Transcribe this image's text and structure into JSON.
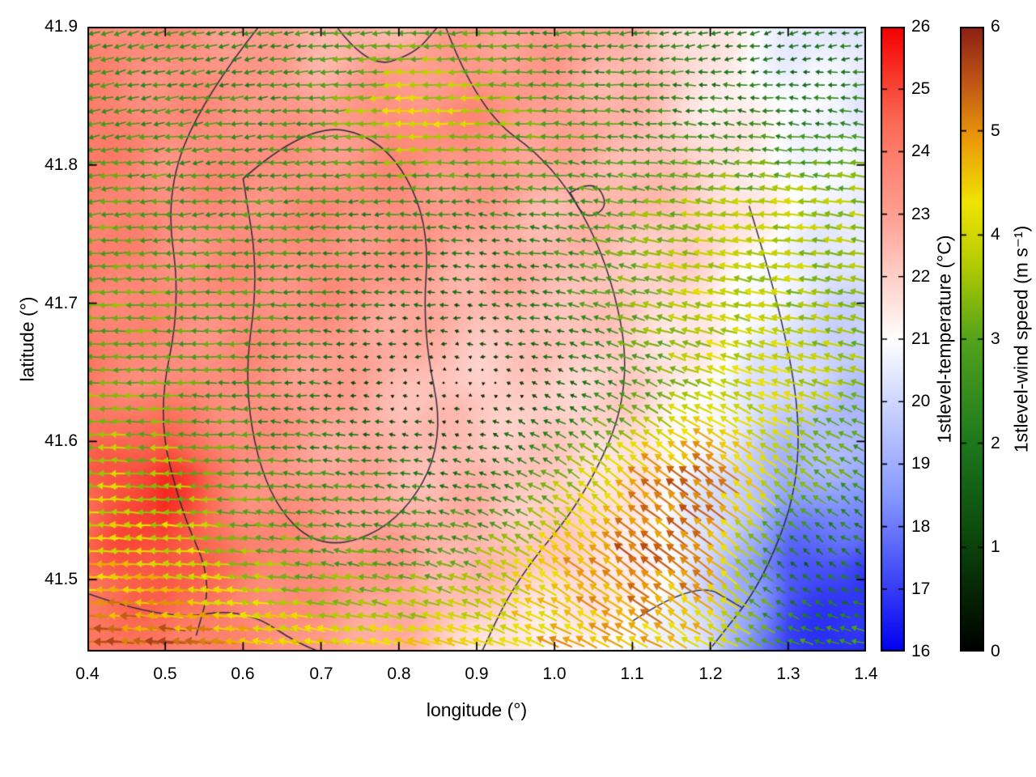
{
  "figure": {
    "background": "#ffffff"
  },
  "chart_data": {
    "type": "heatmap",
    "subtype": "temperature field with wind vector quiver overlay and contour lines",
    "title": "",
    "xlabel": "longitude (°)",
    "ylabel": "latitude (°)",
    "x_range": [
      0.4,
      1.4
    ],
    "y_range": [
      41.448,
      41.9
    ],
    "x_ticks": [
      "0.4",
      "0.5",
      "0.6",
      "0.7",
      "0.8",
      "0.9",
      "1.0",
      "1.1",
      "1.2",
      "1.3",
      "1.4"
    ],
    "y_ticks": [
      "41.9",
      "41.8",
      "41.7",
      "41.6",
      "41.5"
    ],
    "grid_on": false,
    "legend": "none",
    "temperature": {
      "label": "1stlevel-temperature (°C)",
      "range": [
        16,
        26
      ],
      "ticks_top_to_bottom": [
        "26",
        "25",
        "24",
        "23",
        "22",
        "21",
        "20",
        "19",
        "18",
        "17",
        "16"
      ],
      "colormap": [
        [
          0.0,
          "#0000ee"
        ],
        [
          0.25,
          "#8899ff"
        ],
        [
          0.5,
          "#ffffff"
        ],
        [
          0.7,
          "#ff9f92"
        ],
        [
          0.85,
          "#fb6a55"
        ],
        [
          1.0,
          "#f40000"
        ]
      ],
      "grid_lon": [
        0.4,
        0.5,
        0.6,
        0.7,
        0.8,
        0.9,
        1.0,
        1.1,
        1.2,
        1.3,
        1.4
      ],
      "grid_lat": [
        41.445,
        41.51,
        41.575,
        41.64,
        41.705,
        41.77,
        41.835,
        41.9
      ],
      "values_by_lat_row": [
        [
          24,
          24,
          23.5,
          23,
          22.5,
          21.5,
          21,
          21,
          20,
          17,
          16.5
        ],
        [
          24.5,
          25,
          24,
          23.5,
          23,
          22.5,
          22,
          21.5,
          20,
          17.5,
          17
        ],
        [
          24.5,
          25.5,
          23.5,
          23,
          22.5,
          22.5,
          22,
          21.5,
          20.5,
          19,
          19
        ],
        [
          24,
          23.5,
          23.5,
          23,
          22.5,
          22,
          22,
          22,
          21,
          20,
          19.5
        ],
        [
          24,
          23.5,
          23.5,
          23.5,
          23,
          22.5,
          22.5,
          22,
          21.5,
          20.5,
          20
        ],
        [
          24,
          23.5,
          23.5,
          23.5,
          23.5,
          23,
          22.5,
          22.5,
          22,
          21,
          20.5
        ],
        [
          24,
          23.5,
          23.5,
          23,
          23.5,
          23.5,
          23,
          22.5,
          21.5,
          21,
          20.5
        ],
        [
          23.5,
          23.5,
          23,
          22.5,
          22.5,
          23,
          23,
          22.5,
          21.5,
          20.5,
          20.5
        ]
      ]
    },
    "wind": {
      "label": "1stlevel-wind speed (m s⁻¹)",
      "range": [
        0,
        6
      ],
      "ticks_top_to_bottom": [
        "6",
        "5",
        "4",
        "3",
        "2",
        "1",
        "0"
      ],
      "colormap": [
        [
          0,
          "#000000"
        ],
        [
          0.18,
          "#0c470c"
        ],
        [
          0.34,
          "#1e7a1e"
        ],
        [
          0.5,
          "#53a31c"
        ],
        [
          0.62,
          "#b4cc00"
        ],
        [
          0.72,
          "#f0e400"
        ],
        [
          0.82,
          "#ec9a0a"
        ],
        [
          0.91,
          "#c05816"
        ],
        [
          1,
          "#8c2015"
        ]
      ],
      "grid_lon": [
        0.4,
        0.5,
        0.6,
        0.7,
        0.8,
        0.9,
        1.0,
        1.1,
        1.2,
        1.3,
        1.4
      ],
      "grid_lat": [
        41.445,
        41.51,
        41.575,
        41.64,
        41.705,
        41.77,
        41.835,
        41.9
      ],
      "u_by_lat_row": [
        [
          -5.5,
          -5.5,
          -5.0,
          -4.5,
          -4.3,
          -4.2,
          -4.3,
          -4.2,
          -3.6,
          -2.5,
          -2.8
        ],
        [
          -4.5,
          -4.2,
          -3.5,
          -3.0,
          -2.8,
          -3.0,
          -3.8,
          -4.2,
          -4.0,
          -1.2,
          -1.5
        ],
        [
          -3.8,
          -3.5,
          -2.8,
          -2.5,
          -2.2,
          -1.8,
          -2.5,
          -3.8,
          -4.2,
          -3.0,
          -2.0
        ],
        [
          -3.2,
          -3.0,
          -2.6,
          -1.8,
          -0.4,
          -0.3,
          -1.2,
          -2.5,
          -3.5,
          -3.8,
          -3.2
        ],
        [
          -3.2,
          -3.0,
          -2.8,
          -2.4,
          -1.8,
          -1.5,
          -2.2,
          -3.2,
          -3.8,
          -3.6,
          -3.4
        ],
        [
          -3.0,
          -2.8,
          -2.6,
          -2.5,
          -2.4,
          -2.2,
          -2.5,
          -3.0,
          -3.6,
          -3.8,
          -3.5
        ],
        [
          -2.6,
          -2.5,
          -2.4,
          -2.8,
          -4.2,
          -4.0,
          -2.8,
          -2.5,
          -2.2,
          -2.0,
          -2.2
        ],
        [
          -2.4,
          -2.4,
          -2.2,
          -2.5,
          -3.0,
          -2.8,
          -2.5,
          -2.2,
          -2.0,
          -1.5,
          -1.8
        ]
      ],
      "v_by_lat_row": [
        [
          0.3,
          0.5,
          0.6,
          0.9,
          1.1,
          1.4,
          1.9,
          2.2,
          2.0,
          1.0,
          0.6
        ],
        [
          0.3,
          0.4,
          0.4,
          0.5,
          0.6,
          1.2,
          2.6,
          3.2,
          3.0,
          1.2,
          0.8
        ],
        [
          0.2,
          0.2,
          0.2,
          0.3,
          0.3,
          0.5,
          1.8,
          3.0,
          3.2,
          2.2,
          1.5
        ],
        [
          0.1,
          0.1,
          0.1,
          0.1,
          0.05,
          0.0,
          0.4,
          1.2,
          1.5,
          1.2,
          1.0
        ],
        [
          -0.2,
          -0.1,
          0.0,
          0.0,
          0.0,
          0.2,
          0.5,
          0.8,
          0.8,
          0.6,
          0.8
        ],
        [
          -0.3,
          -0.3,
          -0.2,
          -0.2,
          0.0,
          0.2,
          0.3,
          0.5,
          0.5,
          0.4,
          0.5
        ],
        [
          -0.5,
          -0.4,
          -0.3,
          -0.2,
          -0.2,
          0.1,
          0.2,
          0.2,
          0.3,
          0.2,
          0.4
        ],
        [
          -0.6,
          -0.6,
          -0.5,
          -0.4,
          -0.3,
          -0.2,
          -0.2,
          -0.3,
          -0.4,
          -0.5,
          -0.3
        ]
      ]
    },
    "contours": [
      [
        [
          0.62,
          41.9
        ],
        [
          0.55,
          41.85
        ],
        [
          0.5,
          41.78
        ],
        [
          0.52,
          41.7
        ],
        [
          0.49,
          41.62
        ],
        [
          0.52,
          41.55
        ],
        [
          0.56,
          41.5
        ],
        [
          0.54,
          41.46
        ]
      ],
      [
        [
          0.6,
          41.79
        ],
        [
          0.68,
          41.83
        ],
        [
          0.78,
          41.82
        ],
        [
          0.84,
          41.76
        ],
        [
          0.83,
          41.68
        ],
        [
          0.86,
          41.6
        ],
        [
          0.8,
          41.54
        ],
        [
          0.7,
          41.52
        ],
        [
          0.63,
          41.56
        ],
        [
          0.6,
          41.64
        ],
        [
          0.62,
          41.72
        ],
        [
          0.6,
          41.79
        ]
      ],
      [
        [
          0.86,
          41.9
        ],
        [
          0.9,
          41.84
        ],
        [
          1.0,
          41.8
        ],
        [
          1.07,
          41.73
        ],
        [
          1.1,
          41.64
        ],
        [
          1.04,
          41.56
        ],
        [
          0.95,
          41.5
        ],
        [
          0.9,
          41.44
        ]
      ],
      [
        [
          1.25,
          41.77
        ],
        [
          1.3,
          41.68
        ],
        [
          1.32,
          41.58
        ],
        [
          1.27,
          41.5
        ],
        [
          1.2,
          41.45
        ]
      ],
      [
        [
          0.4,
          41.49
        ],
        [
          0.5,
          41.47
        ],
        [
          0.6,
          41.48
        ],
        [
          0.68,
          41.45
        ],
        [
          0.75,
          41.44
        ]
      ],
      [
        [
          1.02,
          41.78
        ],
        [
          1.05,
          41.79
        ],
        [
          1.07,
          41.77
        ],
        [
          1.04,
          41.76
        ],
        [
          1.02,
          41.78
        ]
      ],
      [
        [
          1.1,
          41.47
        ],
        [
          1.18,
          41.5
        ],
        [
          1.24,
          41.48
        ]
      ],
      [
        [
          0.72,
          41.9
        ],
        [
          0.76,
          41.87
        ],
        [
          0.82,
          41.88
        ],
        [
          0.85,
          41.9
        ]
      ]
    ]
  }
}
